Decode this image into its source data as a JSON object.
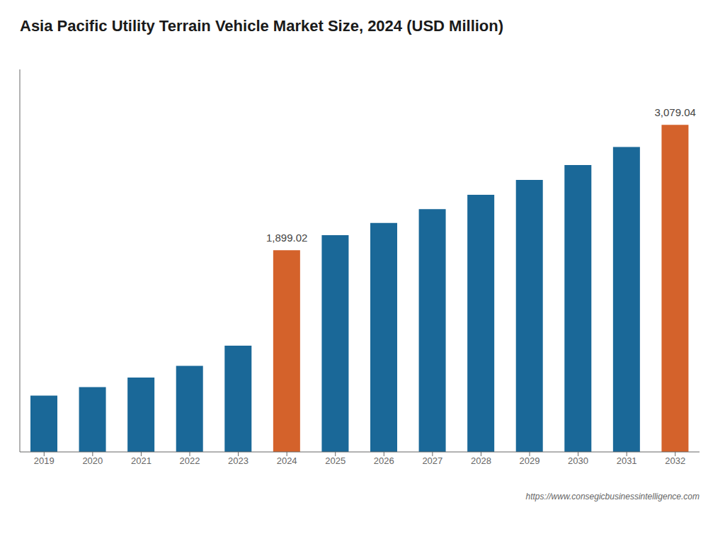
{
  "chart_data": {
    "type": "bar",
    "title": "Asia Pacific Utility Terrain Vehicle Market Size, 2024 (USD Million)",
    "categories": [
      "2019",
      "2020",
      "2021",
      "2022",
      "2023",
      "2024",
      "2025",
      "2026",
      "2027",
      "2028",
      "2029",
      "2030",
      "2031",
      "2032"
    ],
    "values": [
      530,
      610,
      700,
      810,
      1000,
      1899.02,
      2040,
      2155,
      2285,
      2420,
      2560,
      2700,
      2870,
      3079.04
    ],
    "colors": [
      "#1a6898",
      "#1a6898",
      "#1a6898",
      "#1a6898",
      "#1a6898",
      "#d4622b",
      "#1a6898",
      "#1a6898",
      "#1a6898",
      "#1a6898",
      "#1a6898",
      "#1a6898",
      "#1a6898",
      "#d4622b"
    ],
    "annotations": [
      {
        "category": "2024",
        "value": 1899.02,
        "label": "1,899.02"
      },
      {
        "category": "2032",
        "value": 3079.04,
        "label": "3,079.04"
      }
    ],
    "footer": "https://www.consegicbusinessintelligence.com",
    "ylim": [
      0,
      3600
    ],
    "tick_labels": "x",
    "grid": false
  }
}
